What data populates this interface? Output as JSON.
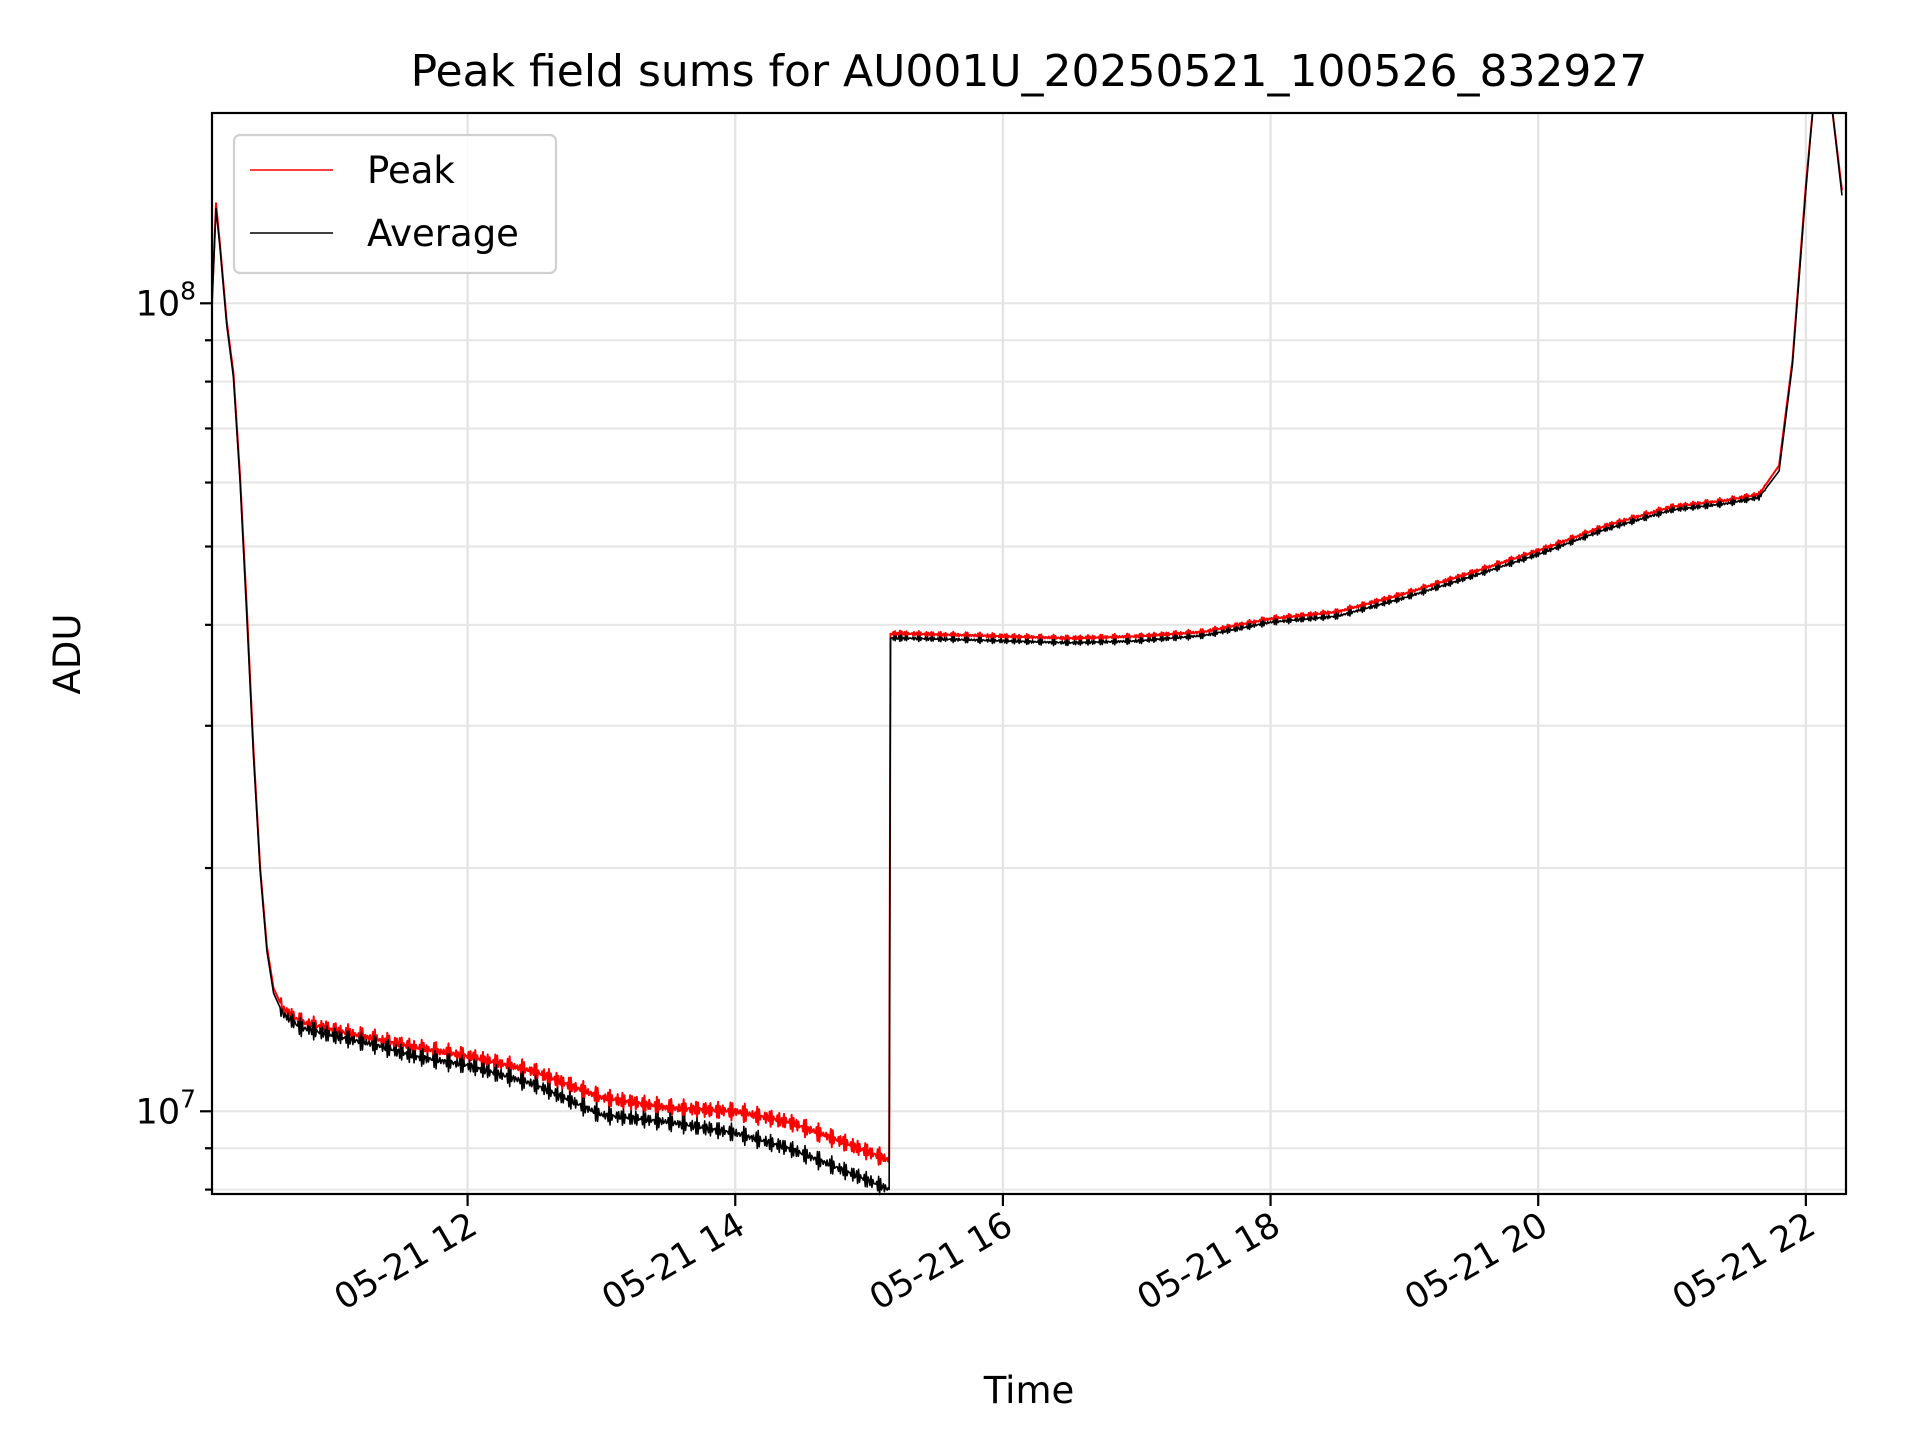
{
  "chart_data": {
    "type": "line",
    "title": "Peak field sums for AU001U_20250521_100526_832927",
    "xlabel": "Time",
    "ylabel": "ADU",
    "yscale": "log",
    "grid": true,
    "legend_position": "top-left",
    "x_unit": "hour of 2025-05-21",
    "xlim": [
      10.09,
      22.3
    ],
    "ylim": [
      7900000.0,
      172000000.0
    ],
    "x_ticks": [
      {
        "value": 12,
        "label": "05-21 12"
      },
      {
        "value": 14,
        "label": "05-21 14"
      },
      {
        "value": 16,
        "label": "05-21 16"
      },
      {
        "value": 18,
        "label": "05-21 18"
      },
      {
        "value": 20,
        "label": "05-21 20"
      },
      {
        "value": 22,
        "label": "05-21 22"
      }
    ],
    "y_ticks": [
      {
        "value": 10000000,
        "base": "10",
        "exp": "7"
      },
      {
        "value": 100000000,
        "base": "10",
        "exp": "8"
      }
    ],
    "colors": {
      "peak": "#ff0000",
      "average": "#000000"
    },
    "series": [
      {
        "name": "Peak",
        "color": "#ff0000",
        "x": [
          10.09,
          10.12,
          10.15,
          10.2,
          10.25,
          10.3,
          10.35,
          10.4,
          10.45,
          10.5,
          10.55,
          10.62,
          10.75,
          11.0,
          11.3,
          11.6,
          12.0,
          12.5,
          13.0,
          13.5,
          14.0,
          14.4,
          14.7,
          15.0,
          15.15,
          15.16,
          15.3,
          15.8,
          16.5,
          17.0,
          17.5,
          18.0,
          18.5,
          19.0,
          19.5,
          20.0,
          20.5,
          21.0,
          21.4,
          21.65,
          21.8,
          21.9,
          22.0,
          22.05,
          22.2,
          22.27
        ],
        "y": [
          100000000,
          133000000,
          118000000,
          95000000,
          82000000,
          61000000,
          42000000,
          28000000,
          20000000,
          16000000,
          14200000,
          13400000,
          12900000,
          12600000,
          12300000,
          12000000,
          11700000,
          11200000,
          10400000,
          10100000,
          10000000,
          9700000,
          9300000,
          8900000,
          8700000,
          39000000,
          39000000,
          38800000,
          38500000,
          38700000,
          39200000,
          40700000,
          41500000,
          43700000,
          46400000,
          49400000,
          53000000,
          56000000,
          57000000,
          58000000,
          63000000,
          85000000,
          140000000,
          172000000,
          172000000,
          138000000
        ]
      },
      {
        "name": "Average",
        "color": "#000000",
        "x": [
          10.09,
          10.12,
          10.15,
          10.2,
          10.25,
          10.3,
          10.35,
          10.4,
          10.45,
          10.5,
          10.55,
          10.62,
          10.75,
          11.0,
          11.3,
          11.6,
          12.0,
          12.5,
          13.0,
          13.5,
          14.0,
          14.4,
          14.7,
          15.0,
          15.15,
          15.16,
          15.3,
          15.8,
          16.5,
          17.0,
          17.5,
          18.0,
          18.5,
          19.0,
          19.5,
          20.0,
          20.5,
          21.0,
          21.4,
          21.65,
          21.8,
          21.9,
          22.0,
          22.05,
          22.2,
          22.27
        ],
        "y": [
          100000000,
          131000000,
          117000000,
          94000000,
          81000000,
          60000000,
          41000000,
          27500000,
          19800000,
          15800000,
          14000000,
          13200000,
          12700000,
          12400000,
          12100000,
          11700000,
          11400000,
          10800000,
          9900000,
          9700000,
          9400000,
          9000000,
          8600000,
          8200000,
          8000000,
          38500000,
          38500000,
          38300000,
          38000000,
          38200000,
          38800000,
          40300000,
          41000000,
          43200000,
          45900000,
          48900000,
          52500000,
          55500000,
          56500000,
          57500000,
          62000000,
          84000000,
          138000000,
          172000000,
          172000000,
          136000000
        ]
      }
    ]
  }
}
